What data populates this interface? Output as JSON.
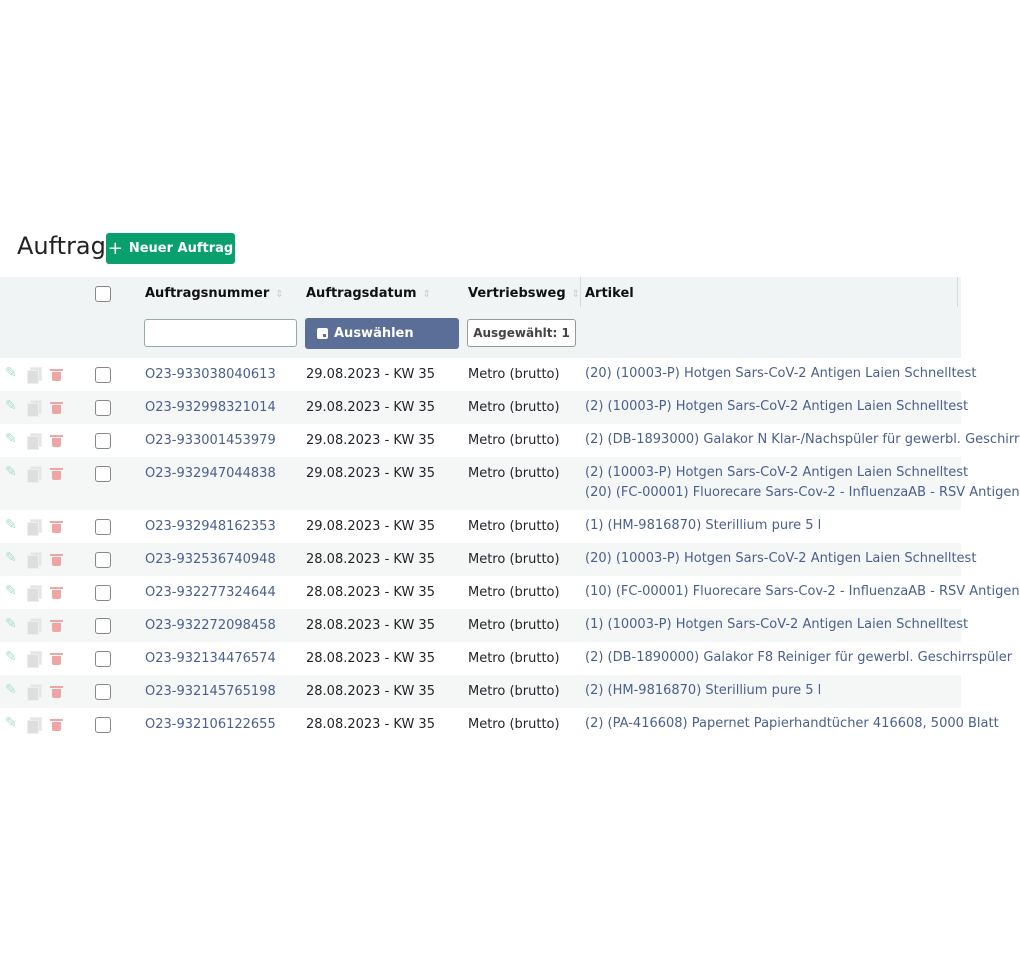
{
  "page": {
    "title": "Auftrag",
    "new_button": "Neuer Auftrag"
  },
  "colors": {
    "accent": "#0aa06e",
    "date_button": "#5a6e98",
    "link": "#4a5f8e"
  },
  "columns": {
    "number": "Auftragsnummer",
    "date": "Auftragsdatum",
    "channel": "Vertriebsweg",
    "article": "Artikel"
  },
  "filters": {
    "number_value": "",
    "date_button": "Auswählen",
    "channel_select": "Ausgewählt: 1"
  },
  "rows": [
    {
      "number": "O23-933038040613",
      "date": "29.08.2023 - KW 35",
      "channel": "Metro (brutto)",
      "articles": [
        "(20) (10003-P) Hotgen Sars-CoV-2 Antigen Laien Schnelltest"
      ]
    },
    {
      "number": "O23-932998321014",
      "date": "29.08.2023 - KW 35",
      "channel": "Metro (brutto)",
      "articles": [
        "(2) (10003-P) Hotgen Sars-CoV-2 Antigen Laien Schnelltest"
      ]
    },
    {
      "number": "O23-933001453979",
      "date": "29.08.2023 - KW 35",
      "channel": "Metro (brutto)",
      "articles": [
        "(2) (DB-1893000) Galakor N Klar-/Nachspüler für gewerbl. Geschirr"
      ]
    },
    {
      "number": "O23-932947044838",
      "date": "29.08.2023 - KW 35",
      "channel": "Metro (brutto)",
      "articles": [
        "(2) (10003-P) Hotgen Sars-CoV-2 Antigen Laien Schnelltest",
        "(20) (FC-00001) Fluorecare Sars-Cov-2 - InfluenzaAB - RSV Antigen"
      ]
    },
    {
      "number": "O23-932948162353",
      "date": "29.08.2023 - KW 35",
      "channel": "Metro (brutto)",
      "articles": [
        "(1) (HM-9816870) Sterillium pure 5 l"
      ]
    },
    {
      "number": "O23-932536740948",
      "date": "28.08.2023 - KW 35",
      "channel": "Metro (brutto)",
      "articles": [
        "(20) (10003-P) Hotgen Sars-CoV-2 Antigen Laien Schnelltest"
      ]
    },
    {
      "number": "O23-932277324644",
      "date": "28.08.2023 - KW 35",
      "channel": "Metro (brutto)",
      "articles": [
        "(10) (FC-00001) Fluorecare Sars-Cov-2 - InfluenzaAB - RSV Antigen"
      ]
    },
    {
      "number": "O23-932272098458",
      "date": "28.08.2023 - KW 35",
      "channel": "Metro (brutto)",
      "articles": [
        "(1) (10003-P) Hotgen Sars-CoV-2 Antigen Laien Schnelltest"
      ]
    },
    {
      "number": "O23-932134476574",
      "date": "28.08.2023 - KW 35",
      "channel": "Metro (brutto)",
      "articles": [
        "(2) (DB-1890000) Galakor F8 Reiniger für gewerbl. Geschirrspüler"
      ]
    },
    {
      "number": "O23-932145765198",
      "date": "28.08.2023 - KW 35",
      "channel": "Metro (brutto)",
      "articles": [
        "(2) (HM-9816870) Sterillium pure 5 l"
      ]
    },
    {
      "number": "O23-932106122655",
      "date": "28.08.2023 - KW 35",
      "channel": "Metro (brutto)",
      "articles": [
        "(2) (PA-416608) Papernet Papierhandtücher 416608, 5000 Blatt"
      ]
    }
  ]
}
